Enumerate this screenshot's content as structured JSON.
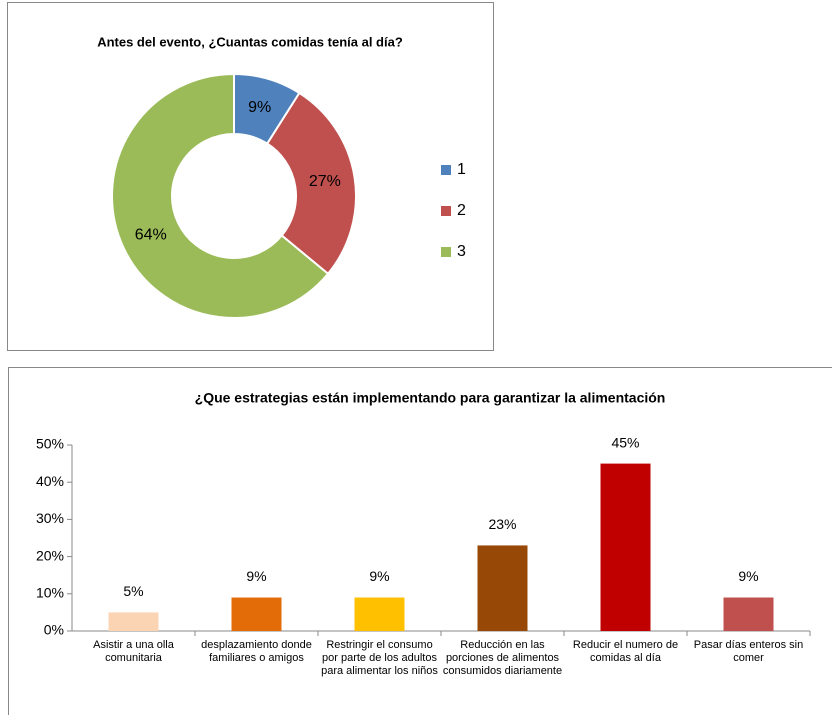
{
  "chart_data": [
    {
      "type": "donut",
      "title": "Antes del evento, ¿Cuantas comidas tenía al día?",
      "categories": [
        "1",
        "2",
        "3"
      ],
      "values": [
        9,
        27,
        64
      ],
      "value_labels": [
        "9%",
        "27%",
        "64%"
      ],
      "colors": [
        "#4f81bd",
        "#c0504d",
        "#9bbb59"
      ],
      "legend": "right"
    },
    {
      "type": "bar",
      "title": "¿Que estrategias están implementando para garantizar la alimentación",
      "categories": [
        "Asistir a una olla comunitaria",
        "desplazamiento donde familiares o amigos",
        "Restringir el consumo por parte de los adultos para alimentar los niños",
        "Reducción en las porciones de alimentos consumidos diariamente",
        "Reducir el numero de comidas al día",
        "Pasar días enteros sin comer"
      ],
      "values": [
        5,
        9,
        9,
        23,
        45,
        9
      ],
      "value_labels": [
        "5%",
        "9%",
        "9%",
        "23%",
        "45%",
        "9%"
      ],
      "colors": [
        "#fbd4b4",
        "#e36c09",
        "#ffc000",
        "#974806",
        "#c00000",
        "#c0504d"
      ],
      "ylim": [
        0,
        50
      ],
      "yticks": [
        {
          "value": 0,
          "label": "0%"
        },
        {
          "value": 10,
          "label": "10%"
        },
        {
          "value": 20,
          "label": "20%"
        },
        {
          "value": 30,
          "label": "30%"
        },
        {
          "value": 40,
          "label": "40%"
        },
        {
          "value": 50,
          "label": "50%"
        }
      ]
    }
  ]
}
